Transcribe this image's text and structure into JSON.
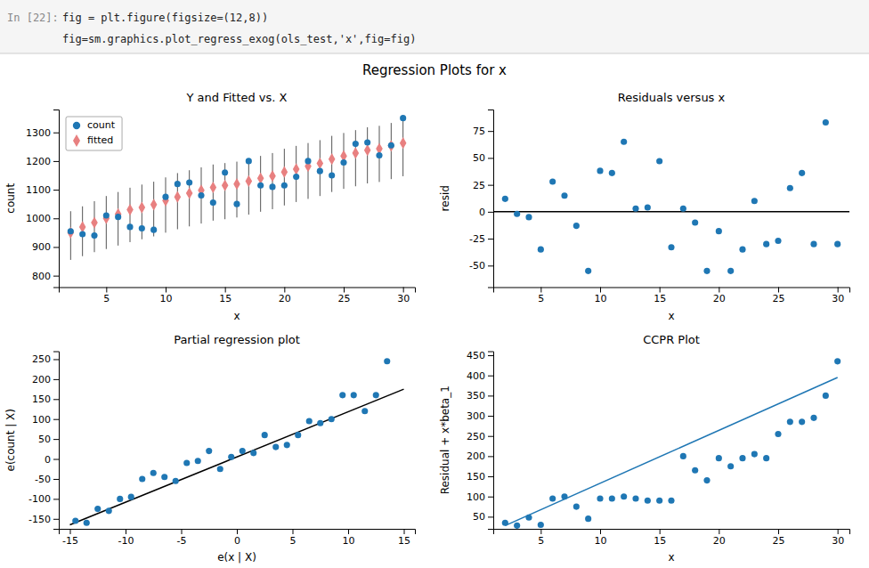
{
  "title": "Regression Plots for x",
  "annotations": [
    "In [22]:",
    "fig = plt.figure(figsize=(12,8))",
    "fig=sm.graphics.plot_regress_exog(ols_test,'x',fig=fig)"
  ],
  "chart_data": [
    {
      "type": "scatter",
      "title": "Y and Fitted vs. X",
      "x_label": "x",
      "y_label": "count",
      "x": [
        2,
        3,
        4,
        5,
        6,
        7,
        8,
        9,
        10,
        11,
        12,
        13,
        14,
        15,
        16,
        17,
        18,
        19,
        20,
        21,
        22,
        23,
        24,
        25,
        26,
        27,
        28,
        29,
        30
      ],
      "series": [
        {
          "name": "count",
          "color": "#1f77b4",
          "marker": "circle",
          "values": [
            955,
            945,
            940,
            1010,
            1005,
            970,
            965,
            960,
            1075,
            1120,
            1125,
            1080,
            1055,
            1160,
            1050,
            1200,
            1115,
            1110,
            1115,
            1145,
            1200,
            1165,
            1150,
            1195,
            1260,
            1265,
            1220,
            1255,
            1350
          ]
        },
        {
          "name": "fitted",
          "color": "#e88080",
          "marker": "diamond",
          "values": [
            950,
            970,
            985,
            1000,
            1015,
            1030,
            1038,
            1048,
            1062,
            1075,
            1088,
            1098,
            1108,
            1115,
            1120,
            1130,
            1140,
            1148,
            1162,
            1172,
            1182,
            1192,
            1207,
            1218,
            1228,
            1238,
            1243,
            1253,
            1263
          ],
          "error_lower": [
            855,
            868,
            882,
            893,
            905,
            917,
            927,
            937,
            950,
            962,
            972,
            982,
            992,
            997,
            1003,
            1013,
            1023,
            1032,
            1045,
            1057,
            1068,
            1078,
            1092,
            1103,
            1112,
            1122,
            1127,
            1137,
            1147
          ],
          "error_upper": [
            1025,
            1042,
            1060,
            1078,
            1092,
            1107,
            1118,
            1128,
            1143,
            1158,
            1168,
            1178,
            1188,
            1193,
            1198,
            1208,
            1218,
            1228,
            1243,
            1253,
            1263,
            1273,
            1288,
            1298,
            1308,
            1318,
            1323,
            1333,
            1343
          ]
        }
      ],
      "xlim": [
        1,
        31
      ],
      "xticks": [
        5,
        10,
        15,
        20,
        25,
        30
      ],
      "ylim": [
        760,
        1380
      ],
      "yticks": [
        800,
        900,
        1000,
        1100,
        1200,
        1300
      ],
      "legend": "upper left"
    },
    {
      "type": "scatter",
      "title": "Residuals versus x",
      "x_label": "x",
      "y_label": "resid",
      "x": [
        2,
        3,
        4,
        5,
        6,
        7,
        8,
        9,
        10,
        11,
        12,
        13,
        14,
        15,
        16,
        17,
        18,
        19,
        20,
        21,
        22,
        23,
        24,
        25,
        26,
        27,
        28,
        29,
        30
      ],
      "series": [
        {
          "color": "#1f77b4",
          "marker": "circle",
          "values": [
            12,
            -2,
            -5,
            -35,
            28,
            15,
            -13,
            -55,
            38,
            36,
            65,
            3,
            4,
            47,
            -33,
            3,
            -10,
            -55,
            -18,
            -55,
            -35,
            10,
            -30,
            -27,
            22,
            36,
            -30,
            83,
            -30
          ]
        }
      ],
      "hline": 0,
      "xlim": [
        1,
        31
      ],
      "xticks": [
        5,
        10,
        15,
        20,
        25,
        30
      ],
      "ylim": [
        -70,
        95
      ],
      "yticks": [
        -50,
        -25,
        0,
        25,
        50,
        75
      ]
    },
    {
      "type": "scatter",
      "title": "Partial regression plot",
      "x_label": "e(x | X)",
      "y_label": "e(count | X)",
      "series": [
        {
          "type": "scatter",
          "color": "#1f77b4",
          "marker": "circle",
          "x": [
            -14.5,
            -13.5,
            -12.5,
            -11.5,
            -10.5,
            -9.5,
            -8.5,
            -7.5,
            -6.5,
            -5.5,
            -4.5,
            -3.5,
            -2.5,
            -1.5,
            -0.5,
            0.5,
            1.5,
            2.5,
            3.5,
            4.5,
            5.5,
            6.5,
            7.5,
            8.5,
            9.5,
            10.5,
            11.5,
            12.5,
            13.5
          ],
          "values": [
            -155,
            -160,
            -125,
            -130,
            -100,
            -95,
            -50,
            -35,
            -45,
            -55,
            -10,
            -5,
            20,
            -25,
            5,
            20,
            15,
            60,
            30,
            35,
            60,
            95,
            90,
            100,
            160,
            160,
            120,
            160,
            245
          ]
        },
        {
          "type": "line",
          "color": "black",
          "x": [
            -15,
            15
          ],
          "values": [
            -165,
            175
          ]
        }
      ],
      "xlim": [
        -16,
        16
      ],
      "xticks": [
        -15,
        -10,
        -5,
        0,
        5,
        10,
        15
      ],
      "ylim": [
        -175,
        270
      ],
      "yticks": [
        -150,
        -100,
        -50,
        0,
        50,
        100,
        150,
        200,
        250
      ]
    },
    {
      "type": "scatter",
      "title": "CCPR Plot",
      "x_label": "x",
      "y_label": "Residual + x*beta_1",
      "series": [
        {
          "type": "scatter",
          "color": "#1f77b4",
          "marker": "circle",
          "x": [
            2,
            3,
            4,
            5,
            6,
            7,
            8,
            9,
            10,
            11,
            12,
            13,
            14,
            15,
            16,
            17,
            18,
            19,
            20,
            21,
            22,
            23,
            24,
            25,
            26,
            27,
            28,
            29,
            30
          ],
          "values": [
            35,
            28,
            48,
            30,
            95,
            100,
            75,
            45,
            95,
            95,
            100,
            95,
            90,
            90,
            90,
            200,
            165,
            140,
            195,
            175,
            195,
            205,
            195,
            255,
            285,
            285,
            295,
            350,
            435
          ]
        },
        {
          "type": "line",
          "color": "#1f77b4",
          "x": [
            2,
            30
          ],
          "values": [
            28,
            395
          ]
        }
      ],
      "xlim": [
        1,
        31
      ],
      "xticks": [
        5,
        10,
        15,
        20,
        25,
        30
      ],
      "ylim": [
        20,
        460
      ],
      "yticks": [
        50,
        100,
        150,
        200,
        250,
        300,
        350,
        400,
        450
      ]
    }
  ]
}
